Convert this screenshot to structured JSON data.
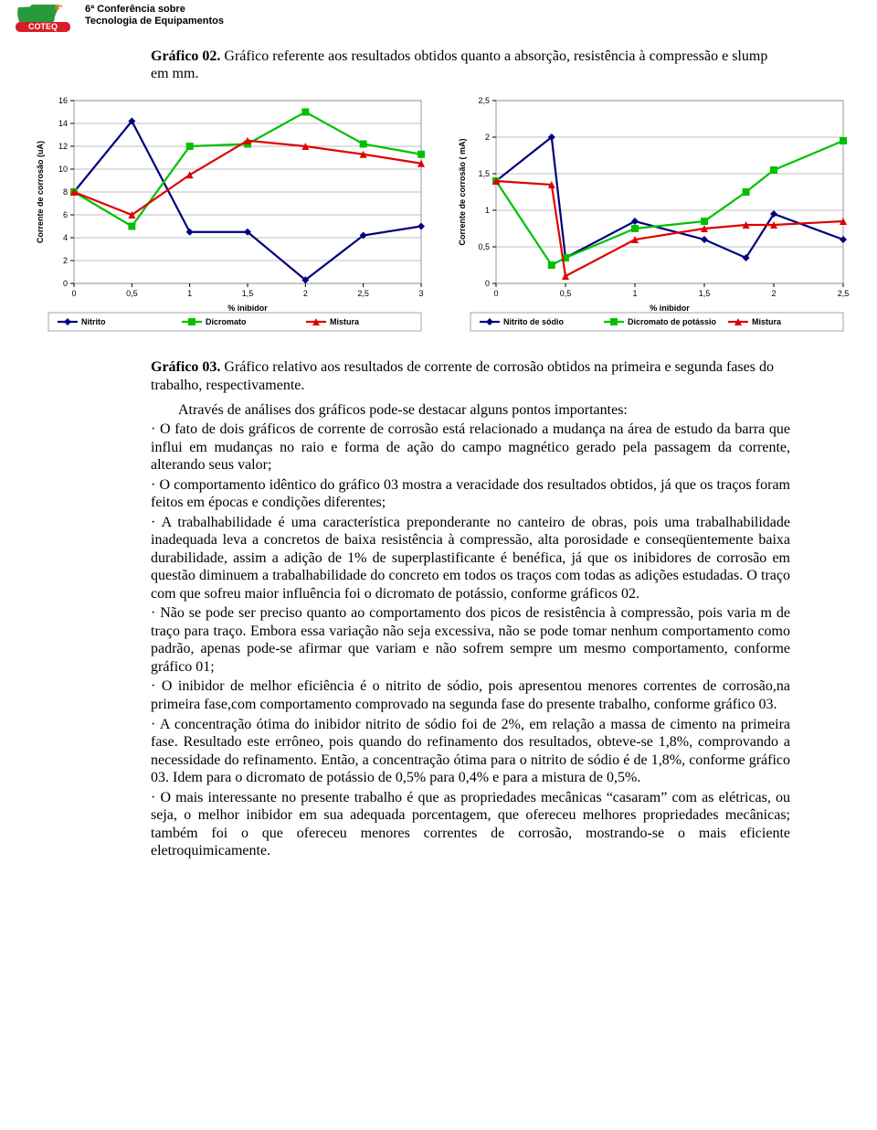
{
  "header": {
    "line1": "6ª Conferência sobre",
    "line2": "Tecnologia de Equipamentos",
    "logo": {
      "green": "#289a3c",
      "orange": "#e58a24",
      "red": "#d61f26",
      "text": "COTEQ"
    }
  },
  "caption02": {
    "bold": "Gráfico 02.",
    "rest": " Gráfico referente aos resultados obtidos quanto a absorção, resistência à compressão e slump em mm."
  },
  "chartLeft": {
    "type": "line",
    "xlabel": "% inibidor",
    "ylabel": "Corrente de corrosão (uA)",
    "xlim": [
      0,
      3
    ],
    "xticks": [
      0,
      0.5,
      1,
      1.5,
      2,
      2.5,
      3
    ],
    "xtick_labels": [
      "0",
      "0,5",
      "1",
      "1,5",
      "2",
      "2,5",
      "3"
    ],
    "ylim": [
      0,
      16
    ],
    "yticks": [
      0,
      2,
      4,
      6,
      8,
      10,
      12,
      14,
      16
    ],
    "grid_color": "#808080",
    "line_width": 2.2,
    "marker_size": 4,
    "series": [
      {
        "name": "Nitrito",
        "color": "#000080",
        "marker": "diamond",
        "x": [
          0,
          0.5,
          1,
          1.5,
          2,
          2.5,
          3
        ],
        "y": [
          8,
          14.2,
          4.5,
          4.5,
          0.3,
          4.2,
          5
        ]
      },
      {
        "name": "Dicromato",
        "color": "#00c000",
        "marker": "square",
        "x": [
          0,
          0.5,
          1,
          1.5,
          2,
          2.5,
          3
        ],
        "y": [
          8,
          5,
          12,
          12.2,
          15,
          12.2,
          11.3
        ]
      },
      {
        "name": "Mistura",
        "color": "#e00000",
        "marker": "triangle",
        "x": [
          0,
          0.5,
          1,
          1.5,
          2,
          2.5,
          3
        ],
        "y": [
          8,
          6,
          9.5,
          12.5,
          12,
          11.3,
          10.5
        ]
      }
    ],
    "legend_pos": "bottom",
    "label_fontsize": 9,
    "tick_fontsize": 9
  },
  "chartRight": {
    "type": "line",
    "xlabel": "% inibidor",
    "ylabel": "Corrente de corrosão ( mA)",
    "xlim": [
      0,
      2.5
    ],
    "xticks": [
      0,
      0.5,
      1,
      1.5,
      2,
      2.5
    ],
    "xtick_labels": [
      "0",
      "0,5",
      "1",
      "1,5",
      "2",
      "2,5"
    ],
    "ylim": [
      0,
      2.5
    ],
    "yticks": [
      0,
      0.5,
      1,
      1.5,
      2,
      2.5
    ],
    "ytick_labels": [
      "0",
      "0,5",
      "1",
      "1,5",
      "2",
      "2,5"
    ],
    "grid_color": "#808080",
    "line_width": 2.2,
    "marker_size": 4,
    "series": [
      {
        "name": "Nitrito de sódio",
        "color": "#000080",
        "marker": "diamond",
        "x": [
          0,
          0.4,
          0.5,
          1,
          1.5,
          1.8,
          2,
          2.5
        ],
        "y": [
          1.4,
          2.0,
          0.35,
          0.85,
          0.6,
          0.35,
          0.95,
          0.6
        ]
      },
      {
        "name": "Dicromato de potássio",
        "color": "#00c000",
        "marker": "square",
        "x": [
          0,
          0.4,
          0.5,
          1,
          1.5,
          1.8,
          2,
          2.5
        ],
        "y": [
          1.4,
          0.25,
          0.35,
          0.75,
          0.85,
          1.25,
          1.55,
          1.95
        ]
      },
      {
        "name": "Mistura",
        "color": "#e00000",
        "marker": "triangle",
        "x": [
          0,
          0.4,
          0.5,
          1,
          1.5,
          1.8,
          2,
          2.5
        ],
        "y": [
          1.4,
          1.35,
          0.1,
          0.6,
          0.75,
          0.8,
          0.8,
          0.85
        ]
      }
    ],
    "legend_pos": "bottom",
    "label_fontsize": 9,
    "tick_fontsize": 9
  },
  "caption03": {
    "bold": "Gráfico 03.",
    "rest": " Gráfico relativo aos resultados de corrente de corrosão obtidos na primeira e segunda fases do trabalho, respectivamente."
  },
  "body": {
    "lead": "Através de análises dos gráficos pode-se destacar alguns pontos importantes:",
    "bullets": [
      "O fato de dois gráficos de corrente de corrosão está relacionado a mudança na área de estudo da barra que influi em mudanças no raio e forma de ação do campo magnético gerado pela passagem da corrente, alterando seus valor;",
      "O comportamento idêntico do gráfico 03 mostra a veracidade dos resultados obtidos, já que os traços foram feitos em épocas e condições diferentes;",
      "A trabalhabilidade é uma característica preponderante no canteiro de obras, pois uma trabalhabilidade inadequada leva a concretos de baixa resistência à compressão, alta porosidade e conseqüentemente baixa durabilidade, assim a adição de 1% de superplastificante é benéfica, já que os inibidores de corrosão em questão diminuem a trabalhabilidade do concreto em todos os traços com todas as adições estudadas. O traço com que sofreu maior influência foi o dicromato de potássio, conforme gráficos 02.",
      "Não se pode ser preciso quanto ao comportamento dos picos de resistência à compressão, pois varia m de traço para traço. Embora essa variação não seja excessiva, não se pode tomar nenhum comportamento como padrão, apenas pode-se afirmar que variam e não sofrem sempre um mesmo comportamento, conforme gráfico 01;",
      "O inibidor de melhor eficiência é o nitrito de sódio, pois apresentou menores correntes de corrosão,na primeira fase,com comportamento comprovado na segunda fase do presente trabalho, conforme gráfico 03.",
      "A concentração ótima do inibidor nitrito de sódio foi de 2%, em relação a massa de cimento na primeira fase. Resultado este errôneo, pois quando do refinamento dos resultados, obteve-se 1,8%, comprovando a necessidade do refinamento. Então, a concentração ótima para o nitrito de sódio é de 1,8%, conforme gráfico 03. Idem para o dicromato de potássio de 0,5% para 0,4% e para a mistura de 0,5%.",
      "O mais interessante no presente trabalho é que as propriedades mecânicas “casaram” com as elétricas, ou seja, o melhor inibidor em sua adequada porcentagem, que ofereceu melhores propriedades mecânicas; também foi o que ofereceu menores correntes de corrosão, mostrando-se o mais eficiente eletroquimicamente."
    ]
  }
}
